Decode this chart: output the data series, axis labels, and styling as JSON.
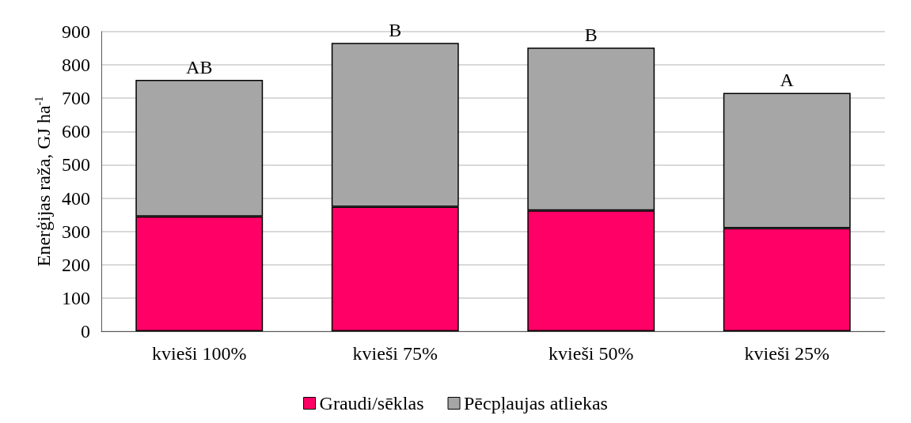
{
  "chart_data": {
    "type": "bar",
    "stacked": true,
    "ylabel": "Enerģijas raža, GJ ha$^{-1}$",
    "categories": [
      "kvieši 100%",
      "kvieši 75%",
      "kvieši 50%",
      "kvieši 25%"
    ],
    "series": [
      {
        "name": "Graudi/sēklas",
        "color": "#ff0066",
        "values": [
          345,
          374,
          363,
          310
        ]
      },
      {
        "name": "Pēcpļaujas atliekas",
        "color": "#a6a6a6",
        "values": [
          410,
          492,
          489,
          406
        ]
      }
    ],
    "ylim": [
      0,
      900
    ],
    "yticks": [
      0,
      100,
      200,
      300,
      400,
      500,
      600,
      700,
      800,
      900
    ],
    "grid": "y",
    "legend": "bottom",
    "annotations": [
      {
        "text": "AB",
        "x": "kvieši 100%",
        "y": 755
      },
      {
        "text": "B",
        "x": "kvieši 75%",
        "y": 866
      },
      {
        "text": "B",
        "x": "kvieši 50%",
        "y": 852
      },
      {
        "text": "A",
        "x": "kvieši 25%",
        "y": 716
      }
    ]
  }
}
